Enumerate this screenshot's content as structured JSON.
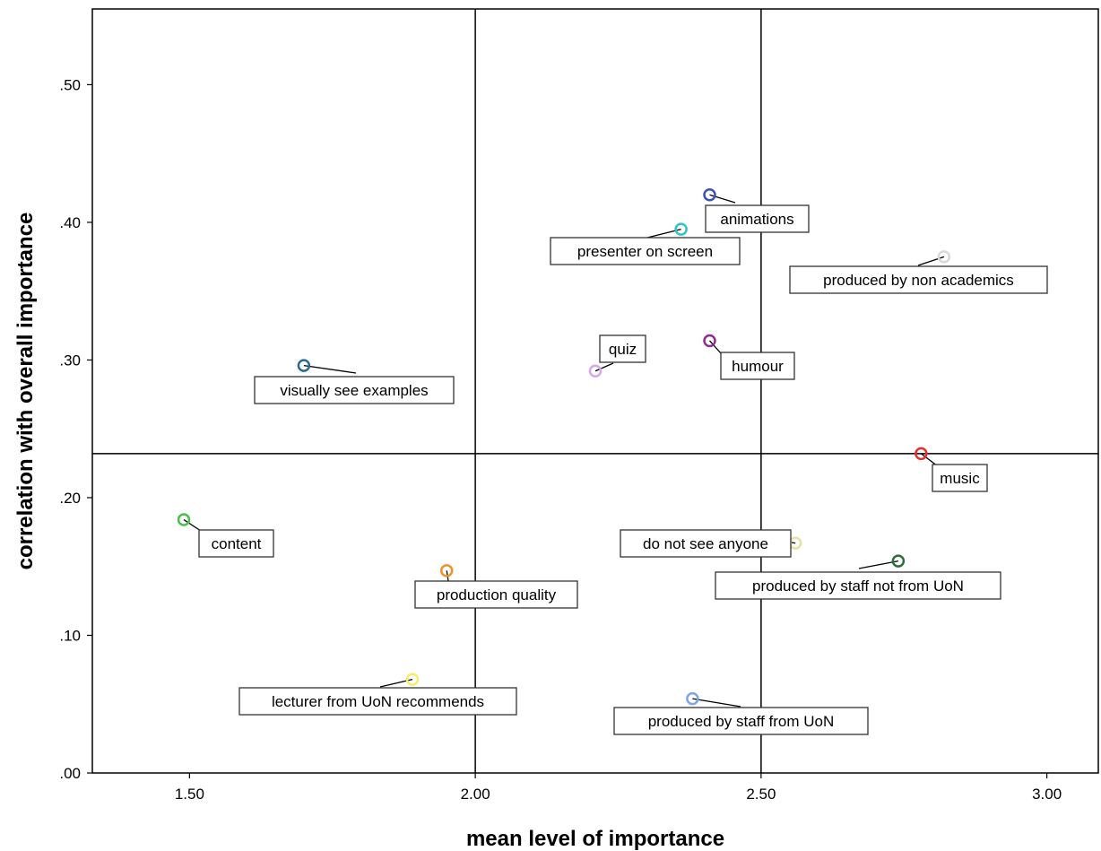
{
  "chart_data": {
    "type": "scatter",
    "title": "",
    "xlabel": "mean level of importance",
    "ylabel": "correlation with overall importance",
    "xlim": [
      1.33,
      3.09
    ],
    "ylim": [
      0.0,
      0.555
    ],
    "x_ticks": [
      1.5,
      2.0,
      2.5,
      3.0
    ],
    "x_tick_labels": [
      "1.50",
      "2.00",
      "2.50",
      "3.00"
    ],
    "y_ticks": [
      0.0,
      0.1,
      0.2,
      0.3,
      0.4,
      0.5
    ],
    "y_tick_labels": [
      ".00",
      ".10",
      ".20",
      ".30",
      ".40",
      ".50"
    ],
    "reference_lines": {
      "x": [
        2.0,
        2.5
      ],
      "y": 0.232
    },
    "grid": false,
    "points": [
      {
        "label": "animations",
        "x": 2.41,
        "y": 0.42,
        "color": "#3b53b8"
      },
      {
        "label": "presenter on screen",
        "x": 2.36,
        "y": 0.395,
        "color": "#2fc4cc"
      },
      {
        "label": "produced by non academics",
        "x": 2.82,
        "y": 0.375,
        "color": "#d9d9d9"
      },
      {
        "label": "quiz",
        "x": 2.21,
        "y": 0.292,
        "color": "#d9a6ee"
      },
      {
        "label": "humour",
        "x": 2.41,
        "y": 0.314,
        "color": "#8e2e8e"
      },
      {
        "label": "visually see examples",
        "x": 1.7,
        "y": 0.296,
        "color": "#2c6b8f"
      },
      {
        "label": "music",
        "x": 2.78,
        "y": 0.232,
        "color": "#e53030"
      },
      {
        "label": "content",
        "x": 1.49,
        "y": 0.184,
        "color": "#49c04a"
      },
      {
        "label": "do not see anyone",
        "x": 2.56,
        "y": 0.167,
        "color": "#e6e2a0"
      },
      {
        "label": "produced by staff not from UoN",
        "x": 2.74,
        "y": 0.154,
        "color": "#2f6e3a"
      },
      {
        "label": "production quality",
        "x": 1.95,
        "y": 0.147,
        "color": "#f0922c"
      },
      {
        "label": "lecturer from UoN recommends",
        "x": 1.89,
        "y": 0.068,
        "color": "#f3ef6a"
      },
      {
        "label": "produced by staff from UoN",
        "x": 2.38,
        "y": 0.054,
        "color": "#7fa4e8"
      }
    ]
  }
}
